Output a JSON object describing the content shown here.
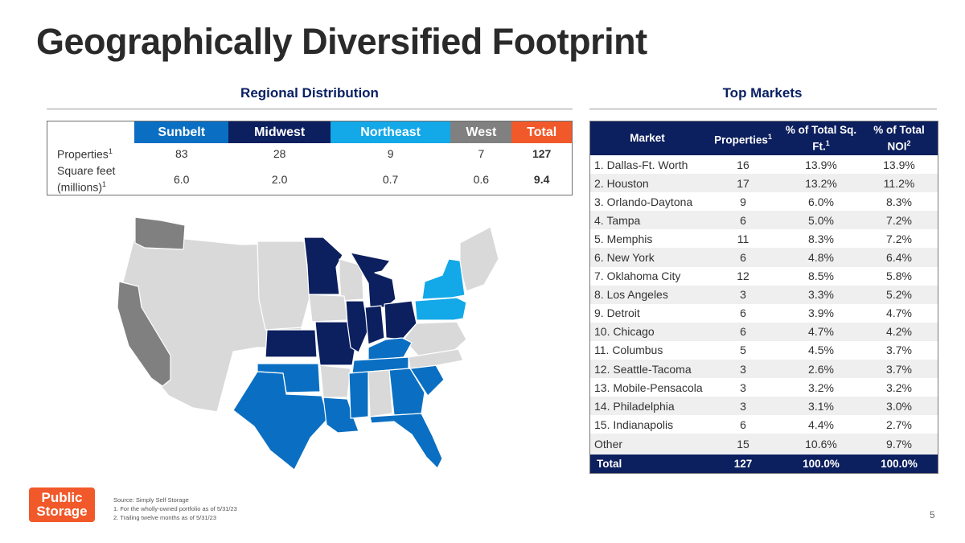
{
  "title": "Geographically Diversified Footprint",
  "regional": {
    "heading": "Regional Distribution",
    "columns": [
      {
        "label": "Sunbelt",
        "color": "#0a6fc2"
      },
      {
        "label": "Midwest",
        "color": "#0c1f5e"
      },
      {
        "label": "Northeast",
        "color": "#13a8e8"
      },
      {
        "label": "West",
        "color": "#808080"
      },
      {
        "label": "Total",
        "color": "#f1592a"
      }
    ],
    "rows": [
      {
        "label": "Properties",
        "sup": "1",
        "values": [
          "83",
          "28",
          "9",
          "7",
          "127"
        ]
      },
      {
        "label": "Square feet (millions)",
        "sup": "1",
        "values": [
          "6.0",
          "2.0",
          "0.7",
          "0.6",
          "9.4"
        ]
      }
    ]
  },
  "markets": {
    "heading": "Top Markets",
    "headers": {
      "market": "Market",
      "properties": "Properties",
      "properties_sup": "1",
      "sqft": "% of Total Sq. Ft.",
      "sqft_sup": "1",
      "noi": "% of Total NOI",
      "noi_sup": "2"
    },
    "rows": [
      {
        "market": "1. Dallas-Ft. Worth",
        "properties": "16",
        "sqft": "13.9%",
        "noi": "13.9%"
      },
      {
        "market": "2. Houston",
        "properties": "17",
        "sqft": "13.2%",
        "noi": "11.2%"
      },
      {
        "market": "3. Orlando-Daytona",
        "properties": "9",
        "sqft": "6.0%",
        "noi": "8.3%"
      },
      {
        "market": "4. Tampa",
        "properties": "6",
        "sqft": "5.0%",
        "noi": "7.2%"
      },
      {
        "market": "5. Memphis",
        "properties": "11",
        "sqft": "8.3%",
        "noi": "7.2%"
      },
      {
        "market": "6. New York",
        "properties": "6",
        "sqft": "4.8%",
        "noi": "6.4%"
      },
      {
        "market": "7. Oklahoma City",
        "properties": "12",
        "sqft": "8.5%",
        "noi": "5.8%"
      },
      {
        "market": "8. Los Angeles",
        "properties": "3",
        "sqft": "3.3%",
        "noi": "5.2%"
      },
      {
        "market": "9. Detroit",
        "properties": "6",
        "sqft": "3.9%",
        "noi": "4.7%"
      },
      {
        "market": "10. Chicago",
        "properties": "6",
        "sqft": "4.7%",
        "noi": "4.2%"
      },
      {
        "market": "11. Columbus",
        "properties": "5",
        "sqft": "4.5%",
        "noi": "3.7%"
      },
      {
        "market": "12. Seattle-Tacoma",
        "properties": "3",
        "sqft": "2.6%",
        "noi": "3.7%"
      },
      {
        "market": "13. Mobile-Pensacola",
        "properties": "3",
        "sqft": "3.2%",
        "noi": "3.2%"
      },
      {
        "market": "14. Philadelphia",
        "properties": "3",
        "sqft": "3.1%",
        "noi": "3.0%"
      },
      {
        "market": "15. Indianapolis",
        "properties": "6",
        "sqft": "4.4%",
        "noi": "2.7%"
      },
      {
        "market": "Other",
        "properties": "15",
        "sqft": "10.6%",
        "noi": "9.7%"
      }
    ],
    "total": {
      "market": "Total",
      "properties": "127",
      "sqft": "100.0%",
      "noi": "100.0%"
    }
  },
  "logo": {
    "line1": "Public",
    "line2": "Storage"
  },
  "footnotes": {
    "source": "Source: Simply Self Storage",
    "note1": "1.  For the wholly-owned portfolio as of 5/31/23",
    "note2": "2.  Trailing twelve months as of 5/31/23"
  },
  "page_number": "5"
}
